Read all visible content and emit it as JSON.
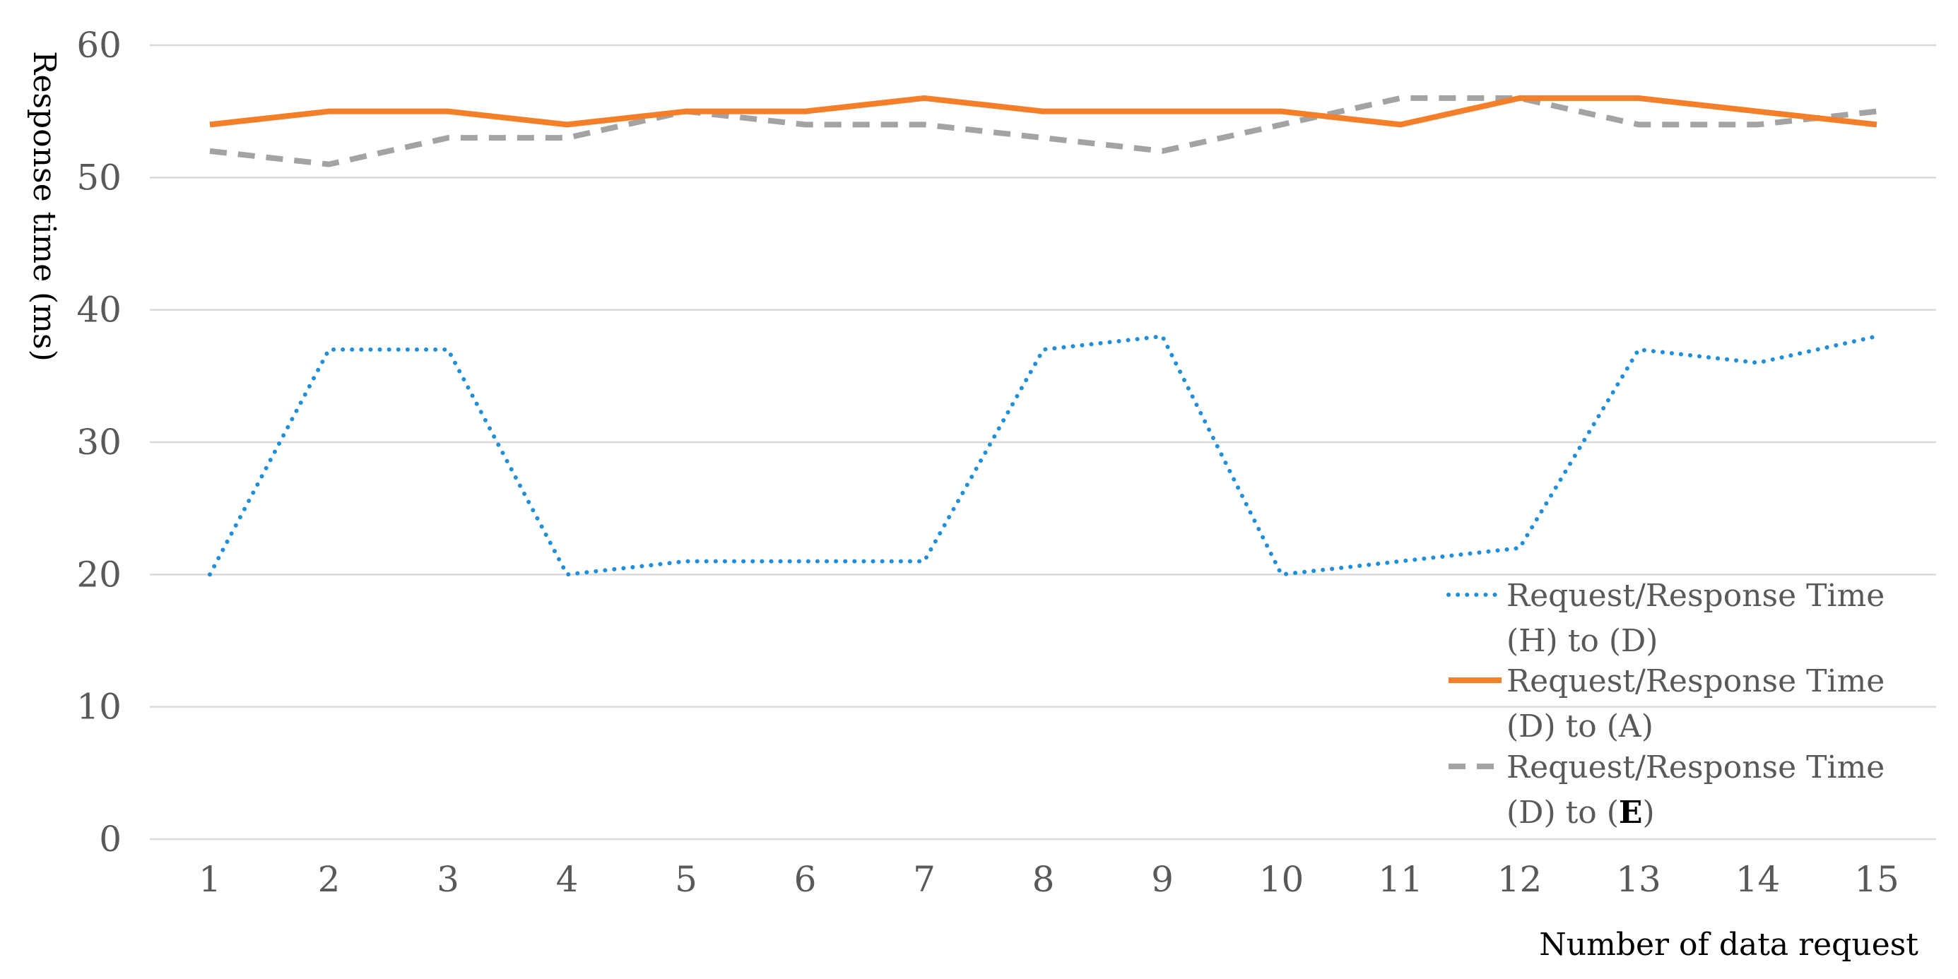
{
  "chart_data": {
    "type": "line",
    "xlabel": "Number of data request",
    "ylabel": "Response time (ms)",
    "ylim": [
      0,
      60
    ],
    "yticks": [
      0,
      10,
      20,
      30,
      40,
      50,
      60
    ],
    "x": [
      1,
      2,
      3,
      4,
      5,
      6,
      7,
      8,
      9,
      10,
      11,
      12,
      13,
      14,
      15
    ],
    "grid": "horizontal",
    "legend_position": "bottom-right",
    "series": [
      {
        "name_line1": "Request/Response Time",
        "name_line2": "(H) to (D)",
        "color": "#1f8fdc",
        "style": "dotted",
        "values": [
          20,
          37,
          37,
          20,
          21,
          21,
          21,
          37,
          38,
          20,
          21,
          22,
          37,
          36,
          38
        ]
      },
      {
        "name_line1": "Request/Response Time",
        "name_line2": "(D) to (A)",
        "color": "#f57f29",
        "style": "solid",
        "values": [
          54,
          55,
          55,
          54,
          55,
          55,
          56,
          55,
          55,
          55,
          54,
          56,
          56,
          55,
          54
        ]
      },
      {
        "name_line1": "Request/Response Time",
        "name_line2_prefix": "(D) to (",
        "name_line2_highlight": "E",
        "name_line2_suffix": ")",
        "color": "#a3a3a3",
        "style": "dashed",
        "values": [
          52,
          51,
          53,
          53,
          55,
          54,
          54,
          53,
          52,
          54,
          56,
          56,
          54,
          54,
          55
        ]
      }
    ]
  }
}
